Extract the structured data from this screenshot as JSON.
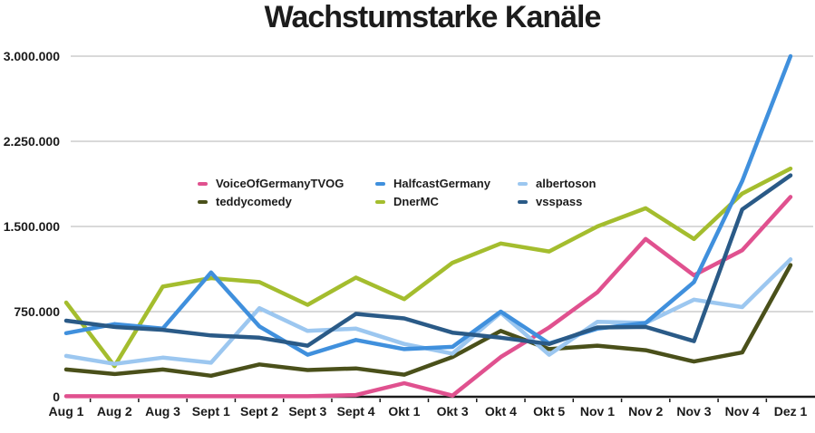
{
  "title": "Wachstumstarke Kanäle",
  "y_axis": {
    "labels": [
      "3.000.000",
      "2.250.000",
      "1.500.000",
      "750.000",
      "0"
    ],
    "values": [
      3000000,
      2250000,
      1500000,
      750000,
      0
    ]
  },
  "legend": {
    "items": [
      {
        "label": "VoiceOfGermanyTVOG",
        "color": "#e0518f"
      },
      {
        "label": "HalfcastGermany",
        "color": "#4090dd"
      },
      {
        "label": "albertoson",
        "color": "#9cc7f0"
      },
      {
        "label": "teddycomedy",
        "color": "#4a501a"
      },
      {
        "label": "DnerMC",
        "color": "#a4bd2e"
      },
      {
        "label": "vsspass",
        "color": "#2a5a87"
      }
    ]
  },
  "chart_data": {
    "type": "line",
    "title": "Wachstumstarke Kanäle",
    "xlabel": "",
    "ylabel": "",
    "ylim": [
      0,
      3000000
    ],
    "y_ticks": [
      0,
      750000,
      1500000,
      2250000,
      3000000
    ],
    "grid": "horizontal",
    "legend_position": "inside-top-left",
    "categories": [
      "Aug 1",
      "Aug 2",
      "Aug 3",
      "Sept 1",
      "Sept 2",
      "Sept 3",
      "Sept 4",
      "Okt 1",
      "Okt 3",
      "Okt 4",
      "Okt 5",
      "Nov 1",
      "Nov 2",
      "Nov 3",
      "Nov 4",
      "Dez 1"
    ],
    "series": [
      {
        "name": "teddycomedy",
        "color": "#4a501a",
        "values": [
          240000,
          200000,
          240000,
          185000,
          285000,
          235000,
          250000,
          195000,
          350000,
          580000,
          420000,
          450000,
          410000,
          310000,
          390000,
          1160000
        ]
      },
      {
        "name": "DnerMC",
        "color": "#a4bd2e",
        "values": [
          830000,
          270000,
          970000,
          1045000,
          1010000,
          810000,
          1050000,
          860000,
          1180000,
          1350000,
          1280000,
          1500000,
          1660000,
          1390000,
          1790000,
          2010000
        ]
      },
      {
        "name": "VoiceOfGermanyTVOG",
        "color": "#e0518f",
        "values": [
          5000,
          5000,
          5000,
          5000,
          5000,
          5000,
          15000,
          120000,
          10000,
          350000,
          610000,
          920000,
          1390000,
          1070000,
          1290000,
          1760000
        ]
      },
      {
        "name": "albertoson",
        "color": "#9cc7f0",
        "values": [
          360000,
          290000,
          345000,
          300000,
          780000,
          580000,
          600000,
          465000,
          380000,
          740000,
          370000,
          660000,
          650000,
          855000,
          790000,
          1210000
        ]
      },
      {
        "name": "HalfcastGermany",
        "color": "#4090dd",
        "values": [
          560000,
          640000,
          600000,
          1095000,
          620000,
          370000,
          500000,
          420000,
          440000,
          750000,
          470000,
          600000,
          650000,
          1010000,
          1900000,
          3000000
        ]
      },
      {
        "name": "vsspass",
        "color": "#2a5a87",
        "values": [
          670000,
          615000,
          590000,
          540000,
          520000,
          450000,
          730000,
          690000,
          565000,
          520000,
          465000,
          610000,
          615000,
          490000,
          1650000,
          1950000
        ]
      }
    ]
  }
}
